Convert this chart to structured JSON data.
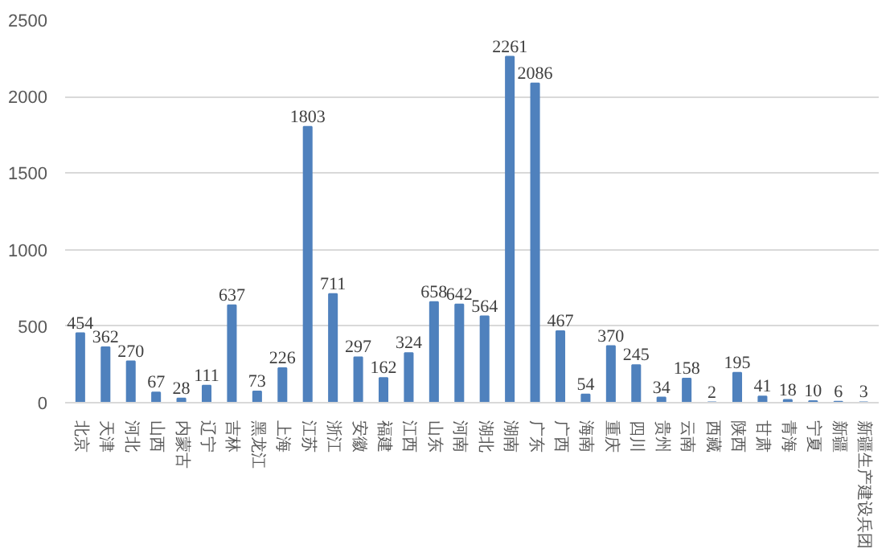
{
  "chart_data": {
    "type": "bar",
    "categories": [
      "北京",
      "天津",
      "河北",
      "山西",
      "内蒙古",
      "辽宁",
      "吉林",
      "黑龙江",
      "上海",
      "江苏",
      "浙江",
      "安徽",
      "福建",
      "江西",
      "山东",
      "河南",
      "湖北",
      "湖南",
      "广东",
      "广西",
      "海南",
      "重庆",
      "四川",
      "贵州",
      "云南",
      "西藏",
      "陕西",
      "甘肃",
      "青海",
      "宁夏",
      "新疆",
      "新疆生产建设兵团"
    ],
    "values": [
      454,
      362,
      270,
      67,
      28,
      111,
      637,
      73,
      226,
      1803,
      711,
      297,
      162,
      324,
      658,
      642,
      564,
      2261,
      2086,
      467,
      54,
      370,
      245,
      34,
      158,
      2,
      195,
      41,
      18,
      10,
      6,
      3
    ],
    "color": "#4f81bd",
    "ylim": [
      0,
      2500
    ],
    "yticks": [
      0,
      500,
      1000,
      1500,
      2000,
      2500
    ],
    "grid": "y",
    "data_labels": true
  }
}
